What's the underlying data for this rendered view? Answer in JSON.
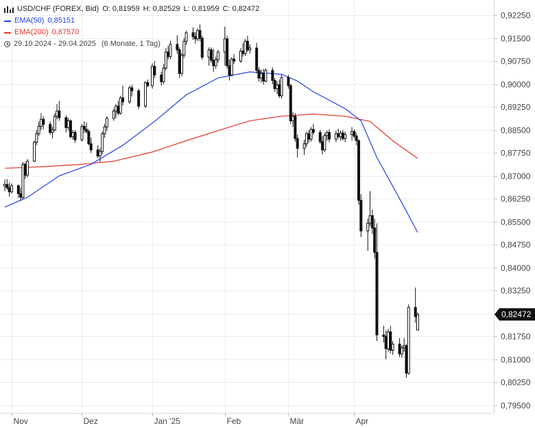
{
  "legend": {
    "symbol": "USD/CHF (FOREX, Bid)",
    "ohlc": {
      "open": "O: 0,81959",
      "high": "H: 0,82529",
      "low": "L: 0,81959",
      "close": "C: 0,82472"
    },
    "ema50_label": "EMA(50)",
    "ema50_value": "0,85151",
    "ema200_label": "EMA(200)",
    "ema200_value": "0,87570",
    "date_range": "29.10.2024 - 29.04.2025",
    "interval": "(6 Monate, 1 Tag)"
  },
  "colors": {
    "ema50": "#1f3fe0",
    "ema200": "#e0342b",
    "candle": "#111111",
    "grid": "#ececec",
    "price_tag": "#111111"
  },
  "icons": {
    "chart_type": "candlestick-icon",
    "period": "clock-icon"
  },
  "chart_data": {
    "type": "candlestick",
    "ylim": [
      0.7925,
      0.9275
    ],
    "y_ticks": [
      "0,92250",
      "0,91500",
      "0,90750",
      "0,90000",
      "0,89250",
      "0,88500",
      "0,87750",
      "0,87000",
      "0,86250",
      "0,85500",
      "0,84750",
      "0,84000",
      "0,83250",
      "0,82500",
      "0,81750",
      "0,81000",
      "0,80250",
      "0,79500"
    ],
    "y_tick_values": [
      0.9225,
      0.915,
      0.9075,
      0.9,
      0.8925,
      0.885,
      0.8775,
      0.87,
      0.8625,
      0.855,
      0.8475,
      0.84,
      0.8325,
      0.825,
      0.8175,
      0.81,
      0.8025,
      0.795
    ],
    "x_ticks": [
      "Nov",
      "Dez",
      "Jan '25",
      "Feb",
      "Mär",
      "Apr"
    ],
    "x_tick_dates": [
      "2024-11-01",
      "2024-12-02",
      "2025-01-02",
      "2025-02-03",
      "2025-03-03",
      "2025-04-01"
    ],
    "last_price_label": "0,82472",
    "last_price": 0.82472,
    "candles": [
      [
        "2024-10-29",
        0.8667,
        0.8688,
        0.865,
        0.8672
      ],
      [
        "2024-10-30",
        0.8672,
        0.869,
        0.8655,
        0.8661
      ],
      [
        "2024-10-31",
        0.8661,
        0.8678,
        0.8632,
        0.8648
      ],
      [
        "2024-11-01",
        0.8648,
        0.8675,
        0.8642,
        0.8668
      ],
      [
        "2024-11-04",
        0.8668,
        0.8672,
        0.8628,
        0.8642
      ],
      [
        "2024-11-05",
        0.8642,
        0.8661,
        0.8618,
        0.863
      ],
      [
        "2024-11-06",
        0.863,
        0.8745,
        0.8625,
        0.8738
      ],
      [
        "2024-11-07",
        0.8738,
        0.8745,
        0.869,
        0.8702
      ],
      [
        "2024-11-08",
        0.8702,
        0.8755,
        0.8695,
        0.8748
      ],
      [
        "2024-11-11",
        0.8748,
        0.8815,
        0.8745,
        0.881
      ],
      [
        "2024-11-12",
        0.881,
        0.885,
        0.88,
        0.8838
      ],
      [
        "2024-11-13",
        0.8838,
        0.8878,
        0.883,
        0.8862
      ],
      [
        "2024-11-14",
        0.8862,
        0.8905,
        0.885,
        0.8885
      ],
      [
        "2024-11-15",
        0.8885,
        0.8895,
        0.8852,
        0.8868
      ],
      [
        "2024-11-18",
        0.8868,
        0.8878,
        0.8835,
        0.8842
      ],
      [
        "2024-11-19",
        0.8842,
        0.886,
        0.8822,
        0.885
      ],
      [
        "2024-11-20",
        0.885,
        0.8905,
        0.8845,
        0.8895
      ],
      [
        "2024-11-21",
        0.8895,
        0.8935,
        0.8885,
        0.8912
      ],
      [
        "2024-11-22",
        0.8912,
        0.8945,
        0.888,
        0.889
      ],
      [
        "2024-11-25",
        0.889,
        0.8898,
        0.8842,
        0.8858
      ],
      [
        "2024-11-26",
        0.8858,
        0.889,
        0.8848,
        0.888
      ],
      [
        "2024-11-27",
        0.888,
        0.8885,
        0.8822,
        0.8828
      ],
      [
        "2024-11-28",
        0.8828,
        0.885,
        0.8818,
        0.8842
      ],
      [
        "2024-11-29",
        0.8842,
        0.885,
        0.8808,
        0.8818
      ],
      [
        "2024-12-02",
        0.8818,
        0.887,
        0.8812,
        0.8862
      ],
      [
        "2024-12-03",
        0.8862,
        0.8878,
        0.884,
        0.8852
      ],
      [
        "2024-12-04",
        0.8852,
        0.8875,
        0.8838,
        0.8845
      ],
      [
        "2024-12-05",
        0.8845,
        0.8852,
        0.88,
        0.8805
      ],
      [
        "2024-12-06",
        0.8805,
        0.8825,
        0.8775,
        0.8785
      ],
      [
        "2024-12-09",
        0.8785,
        0.88,
        0.8758,
        0.8765
      ],
      [
        "2024-12-10",
        0.8765,
        0.879,
        0.8745,
        0.878
      ],
      [
        "2024-12-11",
        0.878,
        0.8845,
        0.877,
        0.8838
      ],
      [
        "2024-12-12",
        0.8838,
        0.887,
        0.8825,
        0.886
      ],
      [
        "2024-12-13",
        0.886,
        0.8895,
        0.8848,
        0.8888
      ],
      [
        "2024-12-16",
        0.8888,
        0.892,
        0.888,
        0.8912
      ],
      [
        "2024-12-17",
        0.8912,
        0.8935,
        0.889,
        0.8928
      ],
      [
        "2024-12-18",
        0.8928,
        0.8945,
        0.8898,
        0.8905
      ],
      [
        "2024-12-19",
        0.8905,
        0.8962,
        0.89,
        0.8955
      ],
      [
        "2024-12-20",
        0.8955,
        0.8995,
        0.893,
        0.8942
      ],
      [
        "2024-12-23",
        0.8942,
        0.8995,
        0.8935,
        0.8988
      ],
      [
        "2024-12-24",
        0.8988,
        0.8998,
        0.896,
        0.8978
      ],
      [
        "2024-12-27",
        0.8978,
        0.8985,
        0.8918,
        0.8928
      ],
      [
        "2024-12-30",
        0.8928,
        0.901,
        0.8922,
        0.9005
      ],
      [
        "2024-12-31",
        0.9005,
        0.9015,
        0.899,
        0.8995
      ],
      [
        "2025-01-02",
        0.8995,
        0.9068,
        0.8985,
        0.9058
      ],
      [
        "2025-01-03",
        0.9058,
        0.9075,
        0.902,
        0.903
      ],
      [
        "2025-01-06",
        0.903,
        0.904,
        0.8995,
        0.9008
      ],
      [
        "2025-01-07",
        0.9008,
        0.9065,
        0.9,
        0.9052
      ],
      [
        "2025-01-08",
        0.9052,
        0.9118,
        0.9045,
        0.9105
      ],
      [
        "2025-01-09",
        0.9105,
        0.9125,
        0.908,
        0.909
      ],
      [
        "2025-01-10",
        0.909,
        0.9142,
        0.9082,
        0.913
      ],
      [
        "2025-01-13",
        0.913,
        0.916,
        0.91,
        0.9112
      ],
      [
        "2025-01-14",
        0.9112,
        0.912,
        0.902,
        0.9035
      ],
      [
        "2025-01-15",
        0.9035,
        0.9102,
        0.9025,
        0.9095
      ],
      [
        "2025-01-16",
        0.9095,
        0.915,
        0.9085,
        0.914
      ],
      [
        "2025-01-17",
        0.914,
        0.9175,
        0.9128,
        0.9168
      ],
      [
        "2025-01-20",
        0.9168,
        0.9185,
        0.9145,
        0.9155
      ],
      [
        "2025-01-21",
        0.9155,
        0.917,
        0.9132,
        0.9148
      ],
      [
        "2025-01-22",
        0.9148,
        0.9182,
        0.914,
        0.9175
      ],
      [
        "2025-01-23",
        0.9175,
        0.9195,
        0.914,
        0.915
      ],
      [
        "2025-01-24",
        0.915,
        0.9158,
        0.908,
        0.9088
      ],
      [
        "2025-01-27",
        0.9088,
        0.912,
        0.906,
        0.9112
      ],
      [
        "2025-01-28",
        0.9112,
        0.912,
        0.907,
        0.9078
      ],
      [
        "2025-01-29",
        0.9078,
        0.9115,
        0.904,
        0.906
      ],
      [
        "2025-01-30",
        0.906,
        0.909,
        0.905,
        0.908
      ],
      [
        "2025-01-31",
        0.908,
        0.9112,
        0.907,
        0.9105
      ],
      [
        "2025-02-03",
        0.9105,
        0.9188,
        0.906,
        0.9148
      ],
      [
        "2025-02-04",
        0.9148,
        0.9158,
        0.905,
        0.906
      ],
      [
        "2025-02-05",
        0.906,
        0.908,
        0.9012,
        0.903
      ],
      [
        "2025-02-06",
        0.903,
        0.9088,
        0.9025,
        0.9082
      ],
      [
        "2025-02-07",
        0.9082,
        0.9098,
        0.9065,
        0.9075
      ],
      [
        "2025-02-10",
        0.9075,
        0.9118,
        0.907,
        0.9108
      ],
      [
        "2025-02-11",
        0.9108,
        0.9135,
        0.909,
        0.91
      ],
      [
        "2025-02-12",
        0.91,
        0.9148,
        0.9092,
        0.914
      ],
      [
        "2025-02-13",
        0.914,
        0.9158,
        0.9105,
        0.9112
      ],
      [
        "2025-02-14",
        0.9112,
        0.913,
        0.91,
        0.9118
      ],
      [
        "2025-02-17",
        0.9118,
        0.9135,
        0.9035,
        0.9045
      ],
      [
        "2025-02-18",
        0.9045,
        0.9055,
        0.9008,
        0.902
      ],
      [
        "2025-02-19",
        0.902,
        0.9048,
        0.9005,
        0.9035
      ],
      [
        "2025-02-20",
        0.9035,
        0.905,
        0.8998,
        0.901
      ],
      [
        "2025-02-21",
        0.901,
        0.9052,
        0.9005,
        0.9045
      ],
      [
        "2025-02-24",
        0.9045,
        0.9055,
        0.9,
        0.9012
      ],
      [
        "2025-02-25",
        0.9012,
        0.902,
        0.8975,
        0.8985
      ],
      [
        "2025-02-26",
        0.8985,
        0.901,
        0.8968,
        0.8998
      ],
      [
        "2025-02-27",
        0.8998,
        0.9015,
        0.8955,
        0.8962
      ],
      [
        "2025-02-28",
        0.8962,
        0.903,
        0.8952,
        0.9022
      ],
      [
        "2025-03-03",
        0.9022,
        0.903,
        0.8985,
        0.8995
      ],
      [
        "2025-03-04",
        0.8995,
        0.9,
        0.887,
        0.888
      ],
      [
        "2025-03-05",
        0.888,
        0.8908,
        0.886,
        0.8895
      ],
      [
        "2025-03-06",
        0.8895,
        0.8905,
        0.8812,
        0.8822
      ],
      [
        "2025-03-07",
        0.8822,
        0.8835,
        0.876,
        0.879
      ],
      [
        "2025-03-10",
        0.879,
        0.8818,
        0.8768,
        0.8805
      ],
      [
        "2025-03-11",
        0.8805,
        0.8845,
        0.8795,
        0.8838
      ],
      [
        "2025-03-12",
        0.8838,
        0.885,
        0.8808,
        0.882
      ],
      [
        "2025-03-13",
        0.882,
        0.886,
        0.8812,
        0.8852
      ],
      [
        "2025-03-14",
        0.8852,
        0.887,
        0.8835,
        0.8842
      ],
      [
        "2025-03-17",
        0.8842,
        0.885,
        0.8805,
        0.8812
      ],
      [
        "2025-03-18",
        0.8812,
        0.883,
        0.877,
        0.8785
      ],
      [
        "2025-03-19",
        0.8785,
        0.884,
        0.8778,
        0.8832
      ],
      [
        "2025-03-20",
        0.8832,
        0.8848,
        0.8815,
        0.8842
      ],
      [
        "2025-03-21",
        0.8842,
        0.8852,
        0.881,
        0.882
      ],
      [
        "2025-03-24",
        0.882,
        0.8848,
        0.881,
        0.8838
      ],
      [
        "2025-03-25",
        0.8838,
        0.8855,
        0.8822,
        0.8828
      ],
      [
        "2025-03-26",
        0.8828,
        0.8848,
        0.8815,
        0.884
      ],
      [
        "2025-03-27",
        0.884,
        0.885,
        0.8815,
        0.8822
      ],
      [
        "2025-03-28",
        0.8822,
        0.8845,
        0.881,
        0.8835
      ],
      [
        "2025-03-31",
        0.8835,
        0.886,
        0.8815,
        0.8845
      ],
      [
        "2025-04-01",
        0.8845,
        0.8852,
        0.8822,
        0.883
      ],
      [
        "2025-04-02",
        0.883,
        0.884,
        0.88,
        0.8815
      ],
      [
        "2025-04-03",
        0.8815,
        0.882,
        0.8605,
        0.862
      ],
      [
        "2025-04-04",
        0.862,
        0.864,
        0.85,
        0.852
      ],
      [
        "2025-04-07",
        0.852,
        0.856,
        0.8455,
        0.8545
      ],
      [
        "2025-04-08",
        0.8545,
        0.865,
        0.8535,
        0.857
      ],
      [
        "2025-04-09",
        0.857,
        0.859,
        0.851,
        0.853
      ],
      [
        "2025-04-10",
        0.853,
        0.856,
        0.843,
        0.845
      ],
      [
        "2025-04-11",
        0.845,
        0.8545,
        0.816,
        0.818
      ],
      [
        "2025-04-14",
        0.818,
        0.821,
        0.8155,
        0.8175
      ],
      [
        "2025-04-15",
        0.8175,
        0.8195,
        0.81,
        0.8135
      ],
      [
        "2025-04-16",
        0.8135,
        0.82,
        0.8125,
        0.819
      ],
      [
        "2025-04-17",
        0.819,
        0.821,
        0.812,
        0.813
      ],
      [
        "2025-04-18",
        0.813,
        0.816,
        0.8115,
        0.815
      ],
      [
        "2025-04-21",
        0.815,
        0.817,
        0.8108,
        0.8118
      ],
      [
        "2025-04-22",
        0.8118,
        0.8145,
        0.8105,
        0.8138
      ],
      [
        "2025-04-23",
        0.8138,
        0.817,
        0.8125,
        0.8145
      ],
      [
        "2025-04-24",
        0.8145,
        0.815,
        0.804,
        0.8055
      ],
      [
        "2025-04-25",
        0.8055,
        0.828,
        0.805,
        0.827
      ],
      [
        "2025-04-28",
        0.827,
        0.8335,
        0.822,
        0.824
      ],
      [
        "2025-04-29",
        0.8196,
        0.8253,
        0.8196,
        0.8247
      ]
    ],
    "ema50": [
      [
        "2024-10-29",
        0.8598
      ],
      [
        "2024-11-08",
        0.863
      ],
      [
        "2024-11-22",
        0.87
      ],
      [
        "2024-12-06",
        0.8738
      ],
      [
        "2024-12-20",
        0.88
      ],
      [
        "2025-01-03",
        0.8878
      ],
      [
        "2025-01-17",
        0.8965
      ],
      [
        "2025-01-31",
        0.902
      ],
      [
        "2025-02-14",
        0.904
      ],
      [
        "2025-02-28",
        0.9032
      ],
      [
        "2025-03-07",
        0.901
      ],
      [
        "2025-03-14",
        0.8975
      ],
      [
        "2025-03-28",
        0.892
      ],
      [
        "2025-04-04",
        0.888
      ],
      [
        "2025-04-11",
        0.876
      ],
      [
        "2025-04-22",
        0.8612
      ],
      [
        "2025-04-29",
        0.8515
      ]
    ],
    "ema200": [
      [
        "2024-10-29",
        0.8725
      ],
      [
        "2024-11-15",
        0.873
      ],
      [
        "2024-12-02",
        0.8738
      ],
      [
        "2024-12-16",
        0.8748
      ],
      [
        "2025-01-02",
        0.8778
      ],
      [
        "2025-01-17",
        0.8815
      ],
      [
        "2025-01-31",
        0.8848
      ],
      [
        "2025-02-14",
        0.888
      ],
      [
        "2025-02-28",
        0.8895
      ],
      [
        "2025-03-14",
        0.8902
      ],
      [
        "2025-03-28",
        0.8895
      ],
      [
        "2025-04-08",
        0.8878
      ],
      [
        "2025-04-18",
        0.8815
      ],
      [
        "2025-04-29",
        0.8757
      ]
    ]
  }
}
